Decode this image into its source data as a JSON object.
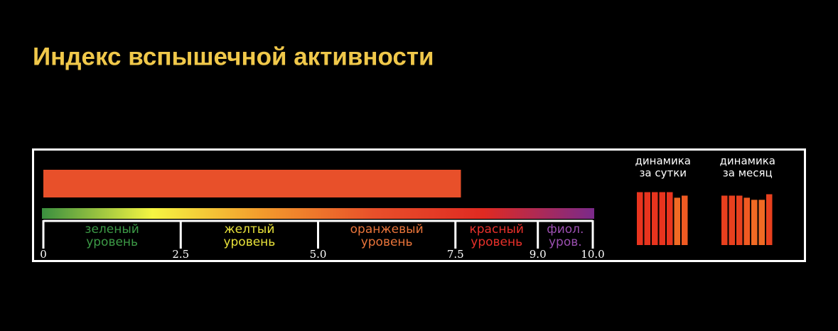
{
  "title": "Индекс вспышечной активности",
  "chart_data": [
    {
      "type": "gauge",
      "value": 7.6,
      "color": "#e8502a",
      "xlim": [
        0,
        10
      ],
      "xticks": [
        0,
        2.5,
        {
          "value": 5,
          "label": "5.0"
        },
        7.5,
        {
          "value": 9,
          "label": "9.0"
        },
        {
          "value": 10,
          "label": "10.0"
        }
      ],
      "gradient": [
        "#3a8f3f",
        "#f5f542",
        "#f39a2c",
        "#e8502a",
        "#e02a22",
        "#7a2a8a"
      ],
      "zones": [
        {
          "label": [
            "зеленый",
            "уровень"
          ],
          "color": "#3c9a46"
        },
        {
          "label": [
            "желтый",
            "уровень"
          ],
          "color": "#e8e23a"
        },
        {
          "label": [
            "оранжевый",
            "уровень"
          ],
          "color": "#e9743a"
        },
        {
          "label": [
            "красный",
            "уровень"
          ],
          "color": "#e8302a"
        },
        {
          "label": [
            "фиол.",
            "уров."
          ],
          "color": "#9b4fb0"
        }
      ]
    },
    {
      "type": "bar",
      "title": [
        "динамика",
        "за сутки"
      ],
      "ylim": [
        0,
        10
      ],
      "values": [
        7.6,
        7.6,
        7.6,
        7.6,
        7.6,
        6.8,
        7.1
      ],
      "colors": [
        "#e8341e",
        "#e8341e",
        "#e8341e",
        "#e8341e",
        "#e8341e",
        "#f06a24",
        "#f05a22"
      ]
    },
    {
      "type": "bar",
      "title": [
        "динамика",
        "за месяц"
      ],
      "ylim": [
        0,
        10
      ],
      "values": [
        7.1,
        7.1,
        7.1,
        6.8,
        6.5,
        6.5,
        7.3
      ],
      "colors": [
        "#e8401e",
        "#e8401e",
        "#e8401e",
        "#f05a22",
        "#f06a24",
        "#f06a24",
        "#e8401e"
      ]
    }
  ]
}
